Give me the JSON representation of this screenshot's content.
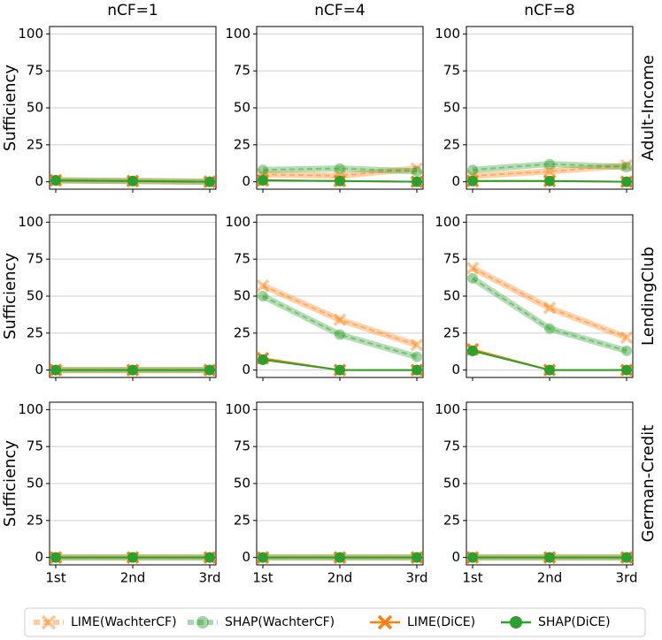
{
  "chart_data": [
    {
      "type": "line",
      "title": "nCF=1",
      "y_label": "Sufficiency",
      "categories": [
        "1st",
        "2nd",
        "3rd"
      ],
      "ylim": [
        -5,
        105
      ],
      "yticks": [
        0,
        25,
        50,
        75,
        100
      ],
      "grid": true,
      "series": [
        {
          "name": "LIME(WachterCF)",
          "color": "#ff7f0e",
          "dashed": true,
          "marker": "x",
          "values": [
            1,
            0.5,
            0
          ]
        },
        {
          "name": "SHAP(WachterCF)",
          "color": "#2ca02c",
          "dashed": true,
          "marker": "o",
          "values": [
            1,
            0.5,
            0
          ]
        },
        {
          "name": "LIME(DiCE)",
          "color": "#ff7f0e",
          "dashed": false,
          "marker": "x",
          "values": [
            1,
            0.5,
            0
          ]
        },
        {
          "name": "SHAP(DiCE)",
          "color": "#2ca02c",
          "dashed": false,
          "marker": "o",
          "values": [
            1,
            0.5,
            0
          ]
        }
      ]
    },
    {
      "type": "line",
      "title": "nCF=4",
      "categories": [
        "1st",
        "2nd",
        "3rd"
      ],
      "ylim": [
        -5,
        105
      ],
      "yticks": [
        0,
        25,
        50,
        75,
        100
      ],
      "grid": true,
      "series": [
        {
          "color": "#ff7f0e",
          "dashed": true,
          "marker": "x",
          "values": [
            5,
            4,
            9
          ]
        },
        {
          "color": "#2ca02c",
          "dashed": true,
          "marker": "o",
          "values": [
            8,
            9,
            7
          ]
        },
        {
          "color": "#ff7f0e",
          "dashed": false,
          "marker": "x",
          "values": [
            1,
            0.5,
            0
          ]
        },
        {
          "color": "#2ca02c",
          "dashed": false,
          "marker": "o",
          "values": [
            1,
            0.5,
            0
          ]
        }
      ]
    },
    {
      "type": "line",
      "title": "nCF=8",
      "row_label": "Adult-Income",
      "categories": [
        "1st",
        "2nd",
        "3rd"
      ],
      "ylim": [
        -5,
        105
      ],
      "yticks": [
        0,
        25,
        50,
        75,
        100
      ],
      "grid": true,
      "series": [
        {
          "color": "#ff7f0e",
          "dashed": true,
          "marker": "x",
          "values": [
            4,
            7,
            11
          ]
        },
        {
          "color": "#2ca02c",
          "dashed": true,
          "marker": "o",
          "values": [
            8,
            12,
            10
          ]
        },
        {
          "color": "#ff7f0e",
          "dashed": false,
          "marker": "x",
          "values": [
            0.5,
            0.5,
            0
          ]
        },
        {
          "color": "#2ca02c",
          "dashed": false,
          "marker": "o",
          "values": [
            0.5,
            0.5,
            0
          ]
        }
      ]
    },
    {
      "type": "line",
      "y_label": "Sufficiency",
      "categories": [
        "1st",
        "2nd",
        "3rd"
      ],
      "ylim": [
        -5,
        105
      ],
      "yticks": [
        0,
        25,
        50,
        75,
        100
      ],
      "grid": true,
      "series": [
        {
          "color": "#ff7f0e",
          "dashed": true,
          "marker": "x",
          "values": [
            0,
            0,
            0
          ]
        },
        {
          "color": "#2ca02c",
          "dashed": true,
          "marker": "o",
          "values": [
            0,
            0,
            0
          ]
        },
        {
          "color": "#ff7f0e",
          "dashed": false,
          "marker": "x",
          "values": [
            0,
            0,
            0
          ]
        },
        {
          "color": "#2ca02c",
          "dashed": false,
          "marker": "o",
          "values": [
            0,
            0,
            0
          ]
        }
      ]
    },
    {
      "type": "line",
      "categories": [
        "1st",
        "2nd",
        "3rd"
      ],
      "ylim": [
        -5,
        105
      ],
      "yticks": [
        0,
        25,
        50,
        75,
        100
      ],
      "grid": true,
      "series": [
        {
          "color": "#ff7f0e",
          "dashed": true,
          "marker": "x",
          "values": [
            57,
            34,
            17
          ]
        },
        {
          "color": "#2ca02c",
          "dashed": true,
          "marker": "o",
          "values": [
            50,
            24,
            9
          ]
        },
        {
          "color": "#ff7f0e",
          "dashed": false,
          "marker": "x",
          "values": [
            8,
            0,
            0
          ]
        },
        {
          "color": "#2ca02c",
          "dashed": false,
          "marker": "o",
          "values": [
            7,
            0,
            0
          ]
        }
      ]
    },
    {
      "type": "line",
      "row_label": "LendingClub",
      "categories": [
        "1st",
        "2nd",
        "3rd"
      ],
      "ylim": [
        -5,
        105
      ],
      "yticks": [
        0,
        25,
        50,
        75,
        100
      ],
      "grid": true,
      "series": [
        {
          "color": "#ff7f0e",
          "dashed": true,
          "marker": "x",
          "values": [
            69,
            42,
            22
          ]
        },
        {
          "color": "#2ca02c",
          "dashed": true,
          "marker": "o",
          "values": [
            62,
            28,
            13
          ]
        },
        {
          "color": "#ff7f0e",
          "dashed": false,
          "marker": "x",
          "values": [
            14,
            0,
            0
          ]
        },
        {
          "color": "#2ca02c",
          "dashed": false,
          "marker": "o",
          "values": [
            13,
            0,
            0
          ]
        }
      ]
    },
    {
      "type": "line",
      "y_label": "Sufficiency",
      "categories": [
        "1st",
        "2nd",
        "3rd"
      ],
      "ylim": [
        -5,
        105
      ],
      "yticks": [
        0,
        25,
        50,
        75,
        100
      ],
      "grid": true,
      "series": [
        {
          "color": "#ff7f0e",
          "dashed": true,
          "marker": "x",
          "values": [
            0,
            0,
            0
          ]
        },
        {
          "color": "#2ca02c",
          "dashed": true,
          "marker": "o",
          "values": [
            0,
            0,
            0
          ]
        },
        {
          "color": "#ff7f0e",
          "dashed": false,
          "marker": "x",
          "values": [
            0,
            0,
            0
          ]
        },
        {
          "color": "#2ca02c",
          "dashed": false,
          "marker": "o",
          "values": [
            0,
            0,
            0
          ]
        }
      ]
    },
    {
      "type": "line",
      "categories": [
        "1st",
        "2nd",
        "3rd"
      ],
      "ylim": [
        -5,
        105
      ],
      "yticks": [
        0,
        25,
        50,
        75,
        100
      ],
      "grid": true,
      "series": [
        {
          "color": "#ff7f0e",
          "dashed": true,
          "marker": "x",
          "values": [
            0,
            0,
            0
          ]
        },
        {
          "color": "#2ca02c",
          "dashed": true,
          "marker": "o",
          "values": [
            0,
            0,
            0
          ]
        },
        {
          "color": "#ff7f0e",
          "dashed": false,
          "marker": "x",
          "values": [
            0,
            0,
            0
          ]
        },
        {
          "color": "#2ca02c",
          "dashed": false,
          "marker": "o",
          "values": [
            0,
            0,
            0
          ]
        }
      ]
    },
    {
      "type": "line",
      "row_label": "German-Credit",
      "categories": [
        "1st",
        "2nd",
        "3rd"
      ],
      "ylim": [
        -5,
        105
      ],
      "yticks": [
        0,
        25,
        50,
        75,
        100
      ],
      "grid": true,
      "series": [
        {
          "color": "#ff7f0e",
          "dashed": true,
          "marker": "x",
          "values": [
            0,
            0,
            0
          ]
        },
        {
          "color": "#2ca02c",
          "dashed": true,
          "marker": "o",
          "values": [
            0,
            0,
            0
          ]
        },
        {
          "color": "#ff7f0e",
          "dashed": false,
          "marker": "x",
          "values": [
            0,
            0,
            0
          ]
        },
        {
          "color": "#2ca02c",
          "dashed": false,
          "marker": "o",
          "values": [
            0,
            0,
            0
          ]
        }
      ]
    }
  ]
}
